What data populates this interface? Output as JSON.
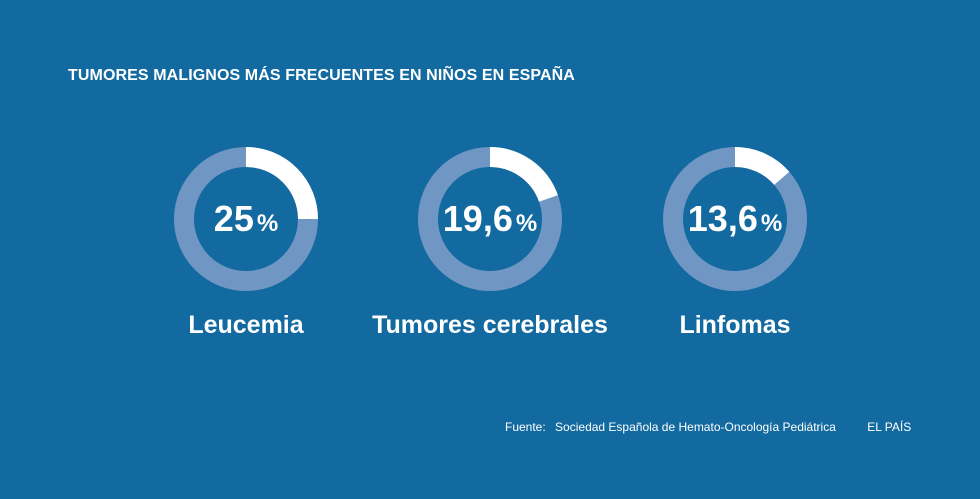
{
  "header": {
    "title": "TUMORES MALIGNOS MÁS FRECUENTES EN NIÑOS EN ESPAÑA"
  },
  "colors": {
    "background": "#136aa0",
    "ring_track": "#7096c3",
    "ring_value": "#ffffff"
  },
  "chart_data": {
    "type": "pie",
    "title": "TUMORES MALIGNOS MÁS FRECUENTES EN NIÑOS EN ESPAÑA",
    "unit": "%",
    "categories": [
      "Leucemia",
      "Tumores cerebrales",
      "Linfomas"
    ],
    "values": [
      25,
      19.6,
      13.6
    ],
    "value_labels": [
      "25",
      "19,6",
      "13,6"
    ]
  },
  "footer": {
    "source_label": "Fuente:",
    "source_text": "Sociedad Española de Hemato-Oncología Pediátrica",
    "brand": "EL PAÍS"
  }
}
